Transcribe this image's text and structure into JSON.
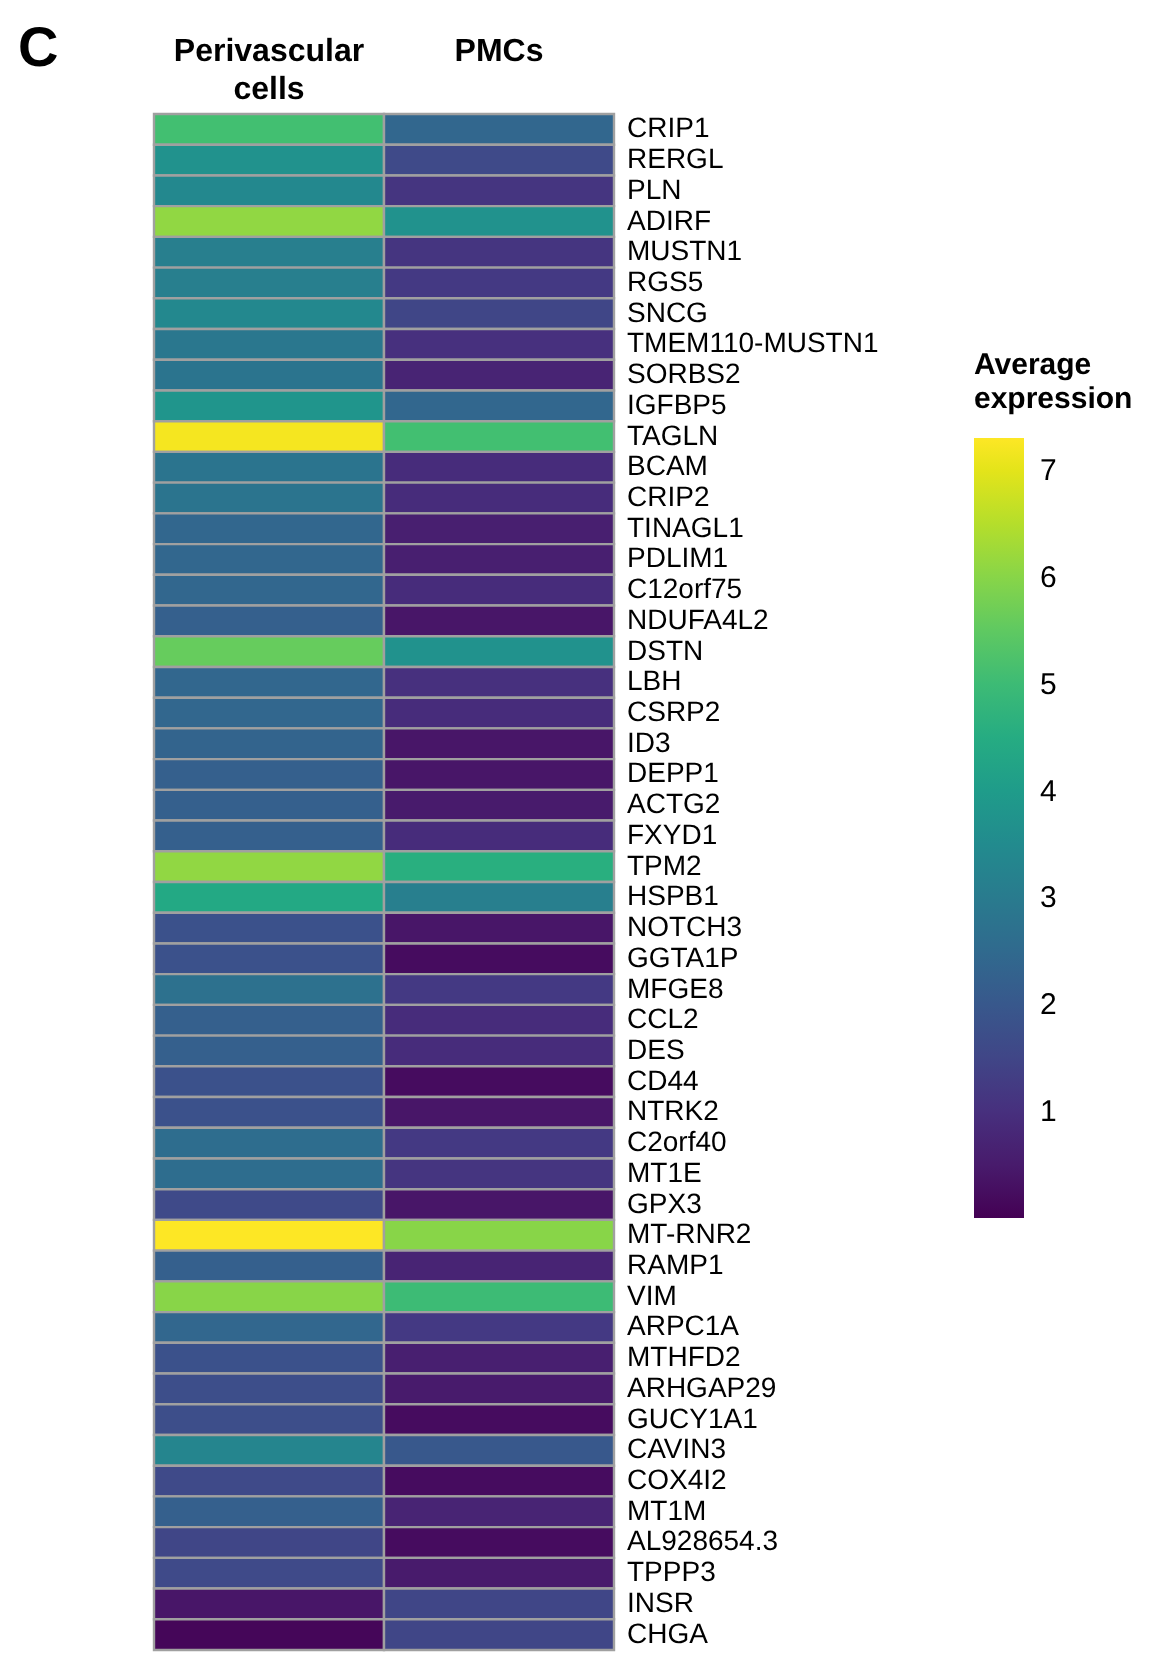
{
  "chart_data": {
    "type": "heatmap",
    "title": "C",
    "clabel": "Average expression",
    "categories": [
      "Perivascular cells",
      "PMCs"
    ],
    "y_categories": [
      "CRIP1",
      "RERGL",
      "PLN",
      "ADIRF",
      "MUSTN1",
      "RGS5",
      "SNCG",
      "TMEM110-MUSTN1",
      "SORBS2",
      "IGFBP5",
      "TAGLN",
      "BCAM",
      "CRIP2",
      "TINAGL1",
      "PDLIM1",
      "C12orf75",
      "NDUFA4L2",
      "DSTN",
      "LBH",
      "CSRP2",
      "ID3",
      "DEPP1",
      "ACTG2",
      "FXYD1",
      "TPM2",
      "HSPB1",
      "NOTCH3",
      "GGTA1P",
      "MFGE8",
      "CCL2",
      "DES",
      "CD44",
      "NTRK2",
      "C2orf40",
      "MT1E",
      "GPX3",
      "MT-RNR2",
      "RAMP1",
      "VIM",
      "ARPC1A",
      "MTHFD2",
      "ARHGAP29",
      "GUCY1A1",
      "CAVIN3",
      "COX4I2",
      "MT1M",
      "AL928654.3",
      "TPPP3",
      "INSR",
      "CHGA"
    ],
    "cells": [
      [
        5.1,
        2.4
      ],
      [
        3.7,
        1.6
      ],
      [
        3.4,
        1.1
      ],
      [
        6.1,
        3.7
      ],
      [
        3.1,
        1.1
      ],
      [
        3.1,
        1.2
      ],
      [
        3.4,
        1.5
      ],
      [
        2.9,
        1.0
      ],
      [
        2.8,
        0.7
      ],
      [
        3.8,
        2.4
      ],
      [
        7.2,
        5.1
      ],
      [
        2.8,
        0.9
      ],
      [
        2.8,
        0.9
      ],
      [
        2.4,
        0.6
      ],
      [
        2.4,
        0.6
      ],
      [
        2.4,
        0.9
      ],
      [
        2.2,
        0.4
      ],
      [
        5.6,
        3.7
      ],
      [
        2.4,
        1.0
      ],
      [
        2.4,
        0.9
      ],
      [
        2.3,
        0.4
      ],
      [
        2.2,
        0.4
      ],
      [
        2.2,
        0.5
      ],
      [
        2.2,
        0.9
      ],
      [
        6.1,
        4.6
      ],
      [
        4.4,
        3.1
      ],
      [
        1.8,
        0.4
      ],
      [
        1.8,
        0.2
      ],
      [
        2.7,
        1.2
      ],
      [
        2.2,
        0.9
      ],
      [
        2.2,
        0.9
      ],
      [
        1.8,
        0.2
      ],
      [
        1.8,
        0.4
      ],
      [
        2.6,
        1.2
      ],
      [
        2.6,
        1.1
      ],
      [
        1.6,
        0.4
      ],
      [
        7.3,
        6.0
      ],
      [
        2.2,
        0.7
      ],
      [
        6.0,
        5.0
      ],
      [
        2.4,
        1.2
      ],
      [
        1.8,
        0.6
      ],
      [
        1.7,
        0.5
      ],
      [
        1.7,
        0.2
      ],
      [
        3.3,
        2.0
      ],
      [
        1.6,
        0.2
      ],
      [
        2.2,
        0.7
      ],
      [
        1.5,
        0.2
      ],
      [
        1.6,
        0.5
      ],
      [
        0.4,
        1.5
      ],
      [
        0.1,
        1.5
      ]
    ],
    "clim": [
      0,
      7.3
    ],
    "cticks": [
      1,
      2,
      3,
      4,
      5,
      6,
      7
    ]
  }
}
